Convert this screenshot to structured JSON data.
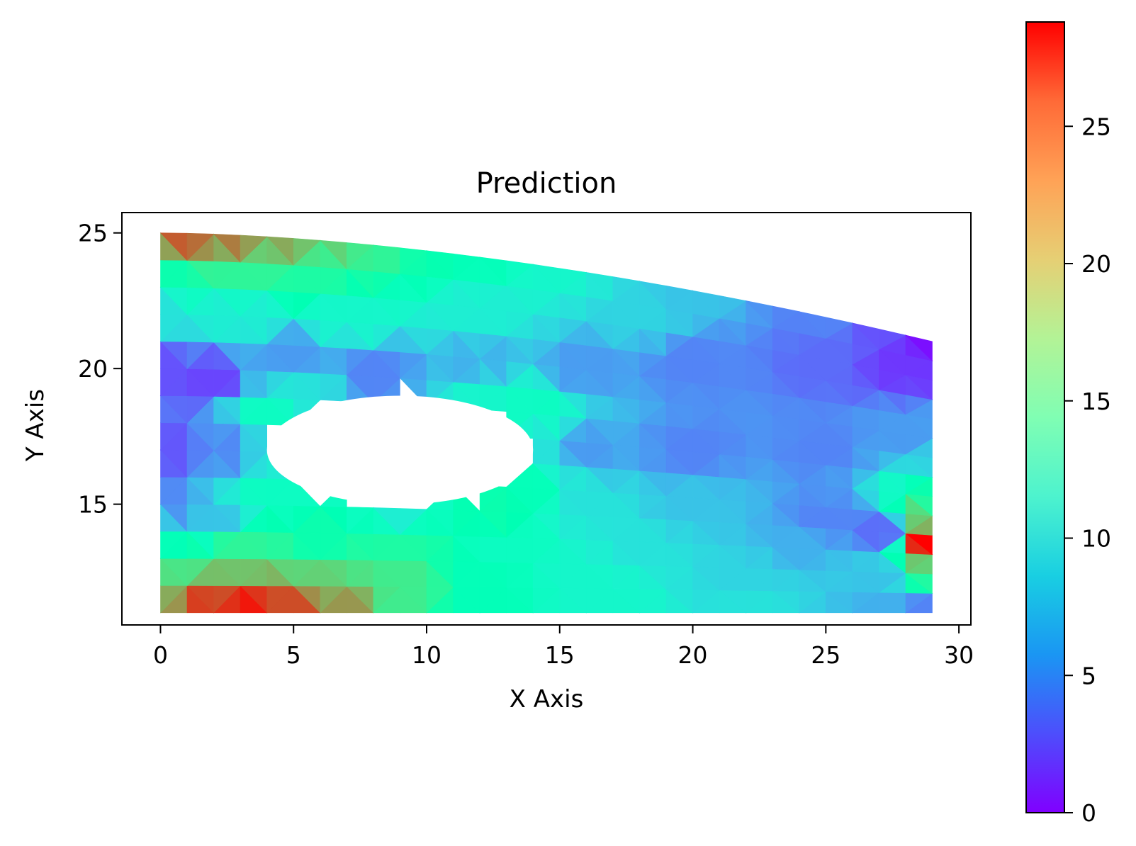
{
  "chart_data": {
    "type": "heatmap",
    "title": "Prediction",
    "xlabel": "X Axis",
    "ylabel": "Y Axis",
    "xlim": [
      -1.45,
      30.45
    ],
    "ylim": [
      10.55,
      25.75
    ],
    "xticks": [
      0,
      5,
      10,
      15,
      20,
      25,
      30
    ],
    "yticks": [
      15,
      20,
      25
    ],
    "colorbar": {
      "min": 0,
      "max": 28.8,
      "ticks": [
        0,
        5,
        10,
        15,
        20,
        25
      ],
      "colormap": "rainbow"
    },
    "domain": {
      "x_range": [
        0,
        29
      ],
      "bottom_y": 11,
      "top_edge_left_y": 25,
      "top_edge_right_y": 21,
      "hole_center": [
        9,
        17
      ],
      "hole_half_width": 5,
      "hole_half_height": 2
    },
    "grid": false,
    "field_samples": [
      {
        "x": 0,
        "y": 25,
        "value": 26
      },
      {
        "x": 2,
        "y": 25,
        "value": 25
      },
      {
        "x": 4,
        "y": 25,
        "value": 23
      },
      {
        "x": 6,
        "y": 24.9,
        "value": 21
      },
      {
        "x": 8,
        "y": 24.8,
        "value": 18
      },
      {
        "x": 10,
        "y": 24.6,
        "value": 15
      },
      {
        "x": 12,
        "y": 24.3,
        "value": 14
      },
      {
        "x": 15,
        "y": 23.9,
        "value": 12
      },
      {
        "x": 20,
        "y": 23,
        "value": 8
      },
      {
        "x": 25,
        "y": 22,
        "value": 5
      },
      {
        "x": 27.5,
        "y": 21.5,
        "value": 3
      },
      {
        "x": 29,
        "y": 21,
        "value": 0.5
      },
      {
        "x": 0,
        "y": 23.5,
        "value": 15
      },
      {
        "x": 3,
        "y": 23.5,
        "value": 17
      },
      {
        "x": 6,
        "y": 23.3,
        "value": 16
      },
      {
        "x": 0,
        "y": 22,
        "value": 10
      },
      {
        "x": 3,
        "y": 22,
        "value": 11
      },
      {
        "x": 7,
        "y": 22,
        "value": 12
      },
      {
        "x": 12,
        "y": 22,
        "value": 11
      },
      {
        "x": 18,
        "y": 22,
        "value": 9
      },
      {
        "x": 0,
        "y": 20,
        "value": 3
      },
      {
        "x": 2,
        "y": 19.5,
        "value": 2.5
      },
      {
        "x": 5,
        "y": 20.5,
        "value": 6
      },
      {
        "x": 8,
        "y": 19.8,
        "value": 5
      },
      {
        "x": 12,
        "y": 20.2,
        "value": 7
      },
      {
        "x": 16,
        "y": 20,
        "value": 6
      },
      {
        "x": 20,
        "y": 20.2,
        "value": 5
      },
      {
        "x": 25,
        "y": 20.3,
        "value": 4
      },
      {
        "x": 28,
        "y": 20.2,
        "value": 2
      },
      {
        "x": 4,
        "y": 18.5,
        "value": 13
      },
      {
        "x": 5.5,
        "y": 19.1,
        "value": 10
      },
      {
        "x": 12.5,
        "y": 19.1,
        "value": 12
      },
      {
        "x": 14,
        "y": 18.5,
        "value": 13
      },
      {
        "x": 0,
        "y": 17,
        "value": 3
      },
      {
        "x": 2.5,
        "y": 17,
        "value": 5
      },
      {
        "x": 3.6,
        "y": 17,
        "value": 9
      },
      {
        "x": 14.4,
        "y": 17,
        "value": 10
      },
      {
        "x": 16,
        "y": 17,
        "value": 6
      },
      {
        "x": 20,
        "y": 17,
        "value": 5
      },
      {
        "x": 25,
        "y": 17,
        "value": 5
      },
      {
        "x": 28,
        "y": 17.5,
        "value": 6
      },
      {
        "x": 29,
        "y": 16.5,
        "value": 9
      },
      {
        "x": 4,
        "y": 15.5,
        "value": 13
      },
      {
        "x": 9,
        "y": 14.8,
        "value": 11
      },
      {
        "x": 12.5,
        "y": 14.8,
        "value": 15
      },
      {
        "x": 14,
        "y": 15.5,
        "value": 14
      },
      {
        "x": 0,
        "y": 15,
        "value": 5
      },
      {
        "x": 2,
        "y": 14.5,
        "value": 8
      },
      {
        "x": 16,
        "y": 15,
        "value": 10
      },
      {
        "x": 20,
        "y": 15,
        "value": 8
      },
      {
        "x": 25,
        "y": 14.5,
        "value": 5
      },
      {
        "x": 27,
        "y": 14,
        "value": 4
      },
      {
        "x": 29,
        "y": 15.5,
        "value": 15
      },
      {
        "x": 29,
        "y": 14.5,
        "value": 21
      },
      {
        "x": 29,
        "y": 13.5,
        "value": 29
      },
      {
        "x": 29,
        "y": 12.7,
        "value": 20
      },
      {
        "x": 29,
        "y": 12,
        "value": 16
      },
      {
        "x": 0,
        "y": 13.5,
        "value": 14
      },
      {
        "x": 3,
        "y": 13.5,
        "value": 17
      },
      {
        "x": 6,
        "y": 13.5,
        "value": 15
      },
      {
        "x": 9,
        "y": 13.5,
        "value": 16
      },
      {
        "x": 13,
        "y": 13.5,
        "value": 13
      },
      {
        "x": 18,
        "y": 13.5,
        "value": 10
      },
      {
        "x": 24,
        "y": 13.5,
        "value": 7
      },
      {
        "x": 0,
        "y": 12.3,
        "value": 19
      },
      {
        "x": 3,
        "y": 12.3,
        "value": 21
      },
      {
        "x": 6,
        "y": 12.3,
        "value": 20
      },
      {
        "x": 9,
        "y": 12.3,
        "value": 18
      },
      {
        "x": 12,
        "y": 12.3,
        "value": 14
      },
      {
        "x": 16,
        "y": 12.3,
        "value": 12
      },
      {
        "x": 22,
        "y": 12.3,
        "value": 9
      },
      {
        "x": 27,
        "y": 12.3,
        "value": 8
      },
      {
        "x": 0,
        "y": 11.2,
        "value": 23
      },
      {
        "x": 2,
        "y": 11.2,
        "value": 27
      },
      {
        "x": 3.5,
        "y": 11.2,
        "value": 28
      },
      {
        "x": 5,
        "y": 11.2,
        "value": 26
      },
      {
        "x": 7,
        "y": 11.2,
        "value": 23
      },
      {
        "x": 9,
        "y": 11.2,
        "value": 18
      },
      {
        "x": 12,
        "y": 11.2,
        "value": 14
      },
      {
        "x": 17,
        "y": 11.2,
        "value": 12
      },
      {
        "x": 22,
        "y": 11.2,
        "value": 10
      },
      {
        "x": 27,
        "y": 11.2,
        "value": 7
      },
      {
        "x": 28.5,
        "y": 11.2,
        "value": 5
      }
    ]
  }
}
